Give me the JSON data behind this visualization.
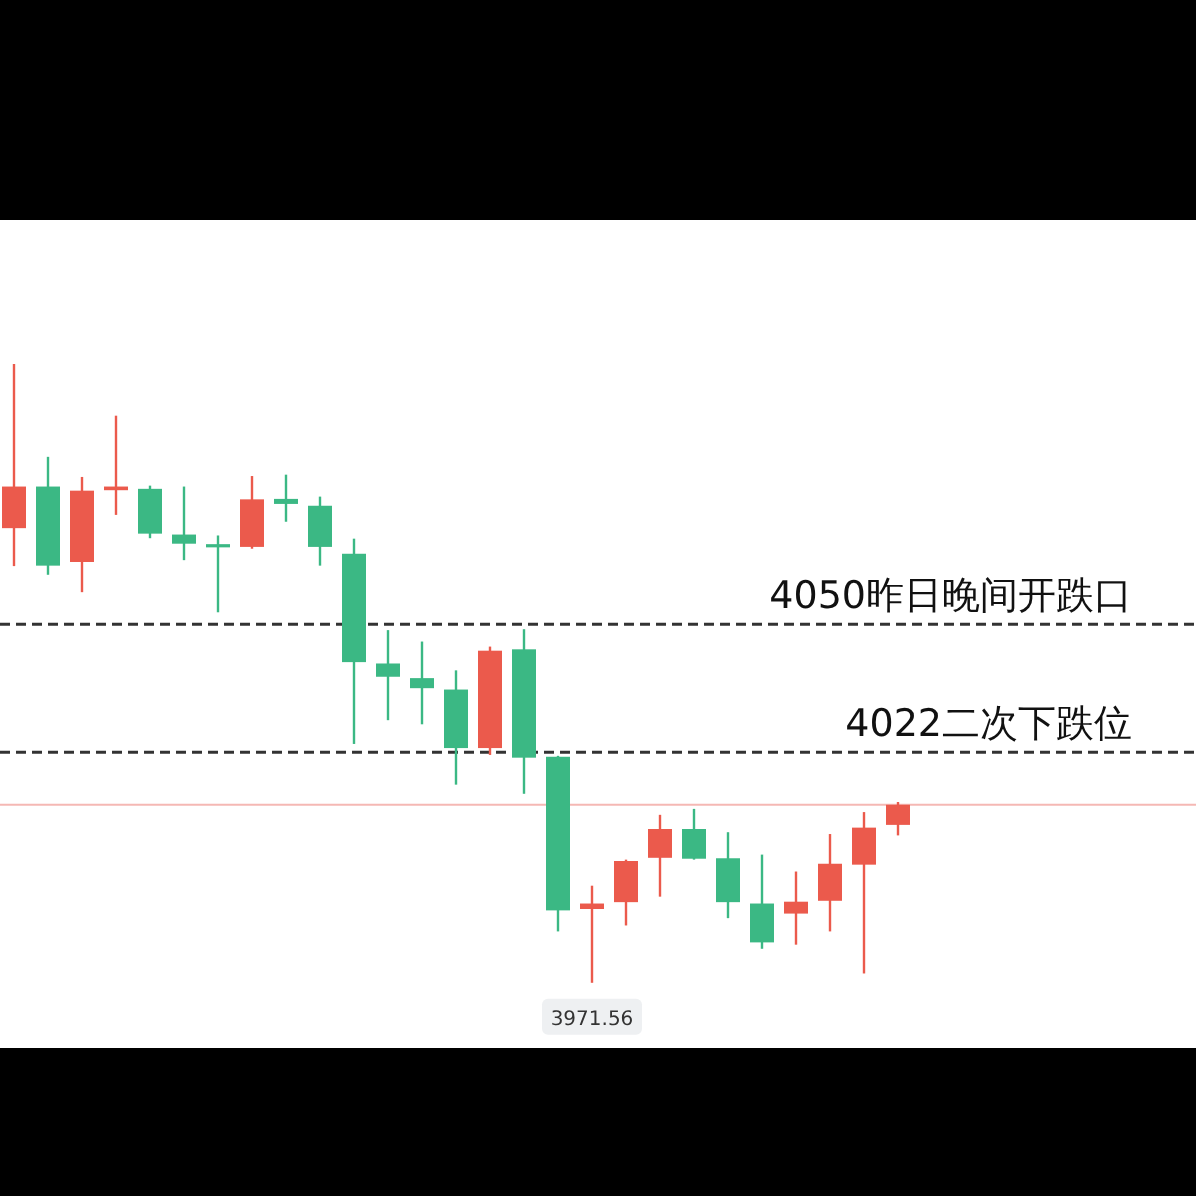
{
  "chart_data": {
    "type": "candlestick",
    "categories": [
      null,
      null,
      null,
      null,
      null,
      null,
      null,
      null,
      null,
      null,
      null,
      null,
      null,
      null,
      null,
      null,
      null,
      null,
      null,
      null,
      null,
      null,
      null,
      null,
      null,
      null,
      null
    ],
    "ohlc": [
      [
        4071.0,
        4106.9,
        4062.7,
        4080.1
      ],
      [
        4080.1,
        4086.6,
        4060.8,
        4062.8
      ],
      [
        4063.6,
        4082.2,
        4057.0,
        4079.2
      ],
      [
        4079.3,
        4095.6,
        4073.9,
        4080.1
      ],
      [
        4079.6,
        4080.3,
        4068.8,
        4069.8
      ],
      [
        4069.6,
        4080.1,
        4064.0,
        4067.6
      ],
      [
        4067.5,
        4069.4,
        4052.6,
        4066.8
      ],
      [
        4066.9,
        4082.4,
        4066.5,
        4077.3
      ],
      [
        4077.4,
        4082.7,
        4072.4,
        4076.3
      ],
      [
        4075.9,
        4077.9,
        4062.8,
        4066.9
      ],
      [
        4065.4,
        4068.7,
        4023.8,
        4041.7
      ],
      [
        4041.4,
        4048.7,
        4029.0,
        4038.5
      ],
      [
        4038.2,
        4046.2,
        4028.1,
        4036.0
      ],
      [
        4035.7,
        4039.9,
        4014.9,
        4022.9
      ],
      [
        4022.9,
        4045.1,
        4021.4,
        4044.2
      ],
      [
        4044.5,
        4048.9,
        4012.9,
        4020.8
      ],
      [
        4021.0,
        4021.2,
        3982.8,
        3987.4
      ],
      [
        3987.7,
        3992.8,
        3971.56,
        3988.9
      ],
      [
        3989.2,
        3998.5,
        3984.1,
        3998.2
      ],
      [
        3998.9,
        4008.3,
        3990.4,
        4005.2
      ],
      [
        4005.2,
        4009.6,
        3998.5,
        3998.7
      ],
      [
        3998.8,
        4004.5,
        3985.7,
        3989.2
      ],
      [
        3988.9,
        3999.6,
        3979.0,
        3980.4
      ],
      [
        3986.7,
        3995.9,
        3979.9,
        3989.3
      ],
      [
        3989.5,
        4004.1,
        3982.8,
        3997.6
      ],
      [
        3997.4,
        4008.9,
        3973.6,
        4005.5
      ],
      [
        4006.1,
        4011.1,
        4003.8,
        4010.5
      ]
    ],
    "ylim": [
      3957.3,
      4138.4
    ],
    "ref_lines": [
      {
        "axis": "y",
        "value": 4050,
        "label": "4050昨日晚间开跌口",
        "color": "#333333",
        "line_style": "dashed"
      },
      {
        "axis": "y",
        "value": 4022,
        "label": "4022二次下跌位",
        "color": "#333333",
        "line_style": "dashed"
      },
      {
        "axis": "y",
        "value": 4010.5,
        "color": "#f5b8b4",
        "line_style": "solid"
      }
    ],
    "annotations": [
      {
        "text": "3971.56",
        "y": 3971.56
      }
    ]
  }
}
